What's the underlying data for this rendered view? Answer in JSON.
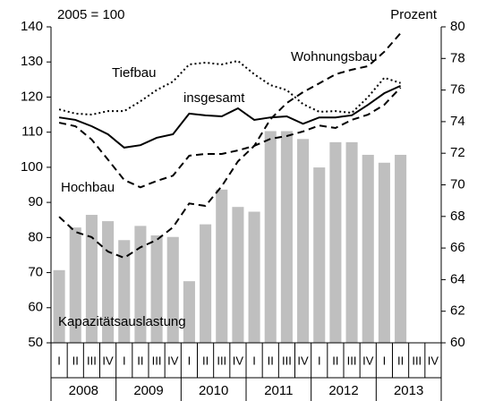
{
  "chart_data": {
    "type": "combo",
    "left_label": "2005 = 100",
    "right_label": "Prozent",
    "categories": [
      "I",
      "II",
      "III",
      "IV",
      "I",
      "II",
      "III",
      "IV",
      "I",
      "II",
      "III",
      "IV",
      "I",
      "II",
      "III",
      "IV",
      "I",
      "II",
      "III",
      "IV",
      "I",
      "II",
      "III",
      "IV"
    ],
    "years": [
      "2008",
      "2009",
      "2010",
      "2011",
      "2012",
      "2013"
    ],
    "ylim": [
      50,
      140
    ],
    "yticks": [
      50,
      60,
      70,
      80,
      90,
      100,
      110,
      120,
      130,
      140
    ],
    "y2lim": [
      60,
      80
    ],
    "y2ticks": [
      60,
      62,
      64,
      66,
      68,
      70,
      72,
      74,
      76,
      78,
      80
    ],
    "series": [
      {
        "name": "Kapazitätsauslastung",
        "kind": "bar",
        "axis": "y2",
        "color": "#bfbfbf",
        "values": [
          64.6,
          67.3,
          68.1,
          67.7,
          66.5,
          67.4,
          66.8,
          66.7,
          63.9,
          67.5,
          69.7,
          68.6,
          68.3,
          73.4,
          73.4,
          72.9,
          71.1,
          72.7,
          72.7,
          71.9,
          71.4,
          71.9,
          null,
          null
        ]
      },
      {
        "name": "Tiefbau",
        "kind": "line",
        "dash": "dotted",
        "color": "#000000",
        "values": [
          116.5,
          115.3,
          115,
          116,
          116,
          118.8,
          122,
          124.4,
          129.3,
          129.8,
          129.3,
          130.3,
          126.5,
          123.4,
          122,
          118,
          115.8,
          116,
          115.5,
          120,
          125.5,
          124,
          null,
          null
        ]
      },
      {
        "name": "insgesamt",
        "kind": "line",
        "dash": "solid",
        "color": "#000000",
        "values": [
          114.2,
          113.5,
          111.7,
          109.4,
          105.6,
          106.3,
          108.4,
          109.4,
          115.3,
          114.8,
          114.5,
          116.8,
          113.5,
          114.2,
          114.5,
          112.4,
          114.2,
          114.2,
          114.8,
          117.8,
          121.1,
          123.2,
          null,
          null
        ]
      },
      {
        "name": "Hochbau",
        "kind": "line",
        "dash": "dashed",
        "color": "#000000",
        "values": [
          112.7,
          111.7,
          107.9,
          102.2,
          96.4,
          94.3,
          96.1,
          97.6,
          103.3,
          103.8,
          103.8,
          104.8,
          106.1,
          108.1,
          108.9,
          110.2,
          111.9,
          111.2,
          113.5,
          115,
          117.8,
          122.7,
          null,
          null
        ]
      },
      {
        "name": "Wohnungsbau",
        "kind": "line",
        "dash": "dashed",
        "color": "#000000",
        "values": [
          85.9,
          81.6,
          80.1,
          76,
          74.2,
          77.2,
          79.3,
          82.9,
          89.7,
          89,
          94.6,
          101.7,
          106.1,
          113.7,
          118.3,
          121.4,
          123.9,
          126.5,
          127.8,
          128.8,
          132.9,
          138.2,
          null,
          null
        ]
      }
    ]
  }
}
